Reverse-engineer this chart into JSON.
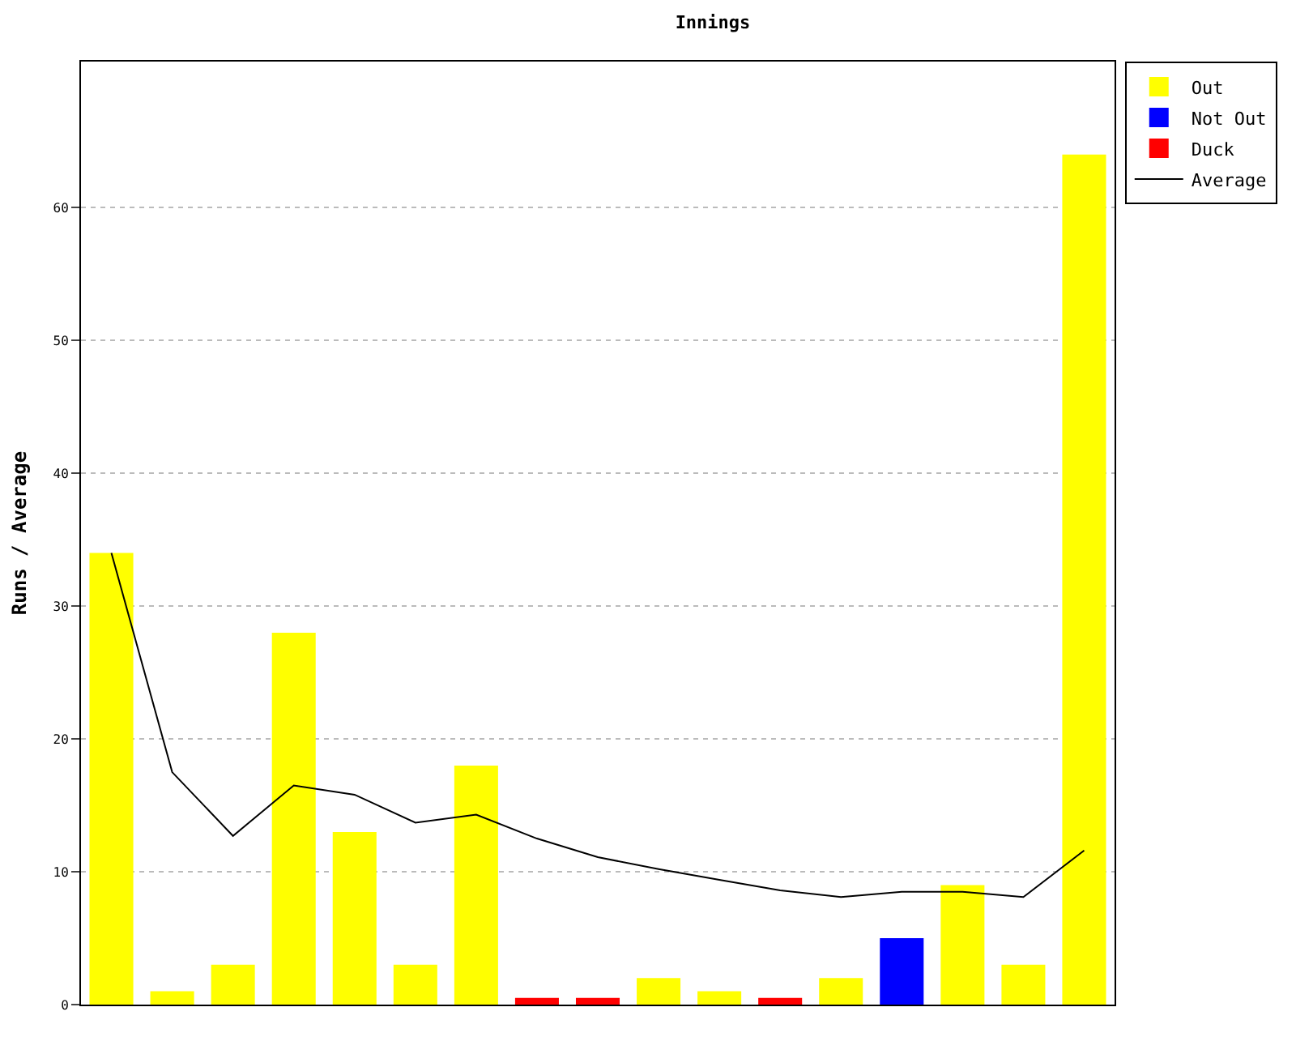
{
  "chart_data": {
    "type": "bar",
    "title": "Innings",
    "ylabel": "Runs / Average",
    "categories": [
      null,
      null,
      null,
      null,
      null,
      null,
      null,
      null,
      null,
      null,
      null,
      null,
      null,
      null,
      null,
      null,
      null
    ],
    "series": [
      {
        "name": "Average",
        "type": "line",
        "color": "#000000",
        "values": [
          34,
          17.5,
          12.7,
          16.5,
          15.8,
          13.7,
          14.3,
          12.5,
          11.1,
          10.2,
          9.4,
          8.6,
          8.1,
          8.5,
          8.5,
          8.1,
          11.6
        ]
      },
      {
        "name": "Out",
        "color": "#ffff00",
        "values": [
          34,
          1,
          3,
          28,
          13,
          3,
          18,
          null,
          null,
          2,
          1,
          null,
          2,
          null,
          9,
          3,
          64
        ]
      },
      {
        "name": "Not Out",
        "color": "#0000ff",
        "values": [
          null,
          null,
          null,
          null,
          null,
          null,
          null,
          null,
          null,
          null,
          null,
          null,
          null,
          5,
          null,
          null,
          null
        ]
      },
      {
        "name": "Duck",
        "color": "#ff0000",
        "values": [
          null,
          null,
          null,
          null,
          null,
          null,
          null,
          0.5,
          0.5,
          null,
          null,
          0.5,
          null,
          null,
          null,
          null,
          null
        ]
      }
    ],
    "ylim": [
      0,
      71
    ],
    "yticks": [
      0,
      10,
      20,
      30,
      40,
      50,
      60
    ],
    "grid": "y",
    "legend": "top right",
    "marker": "none",
    "tick_labels": "y"
  }
}
